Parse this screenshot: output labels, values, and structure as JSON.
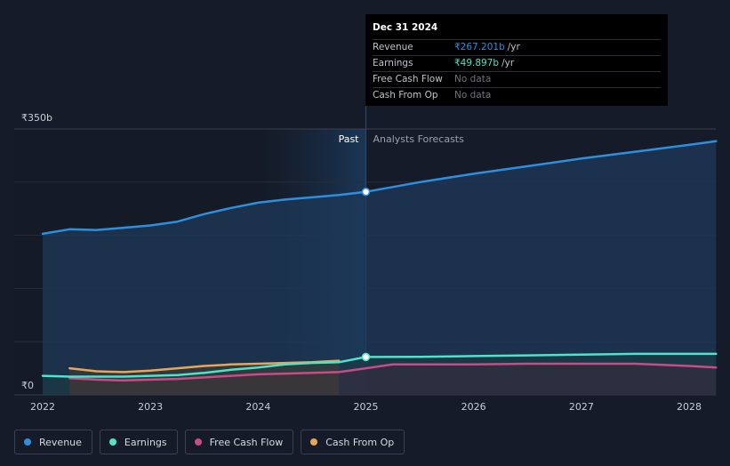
{
  "chart_data": {
    "type": "line",
    "y_axis": {
      "min_label": "₹0",
      "max_label": "₹350b",
      "ylim": [
        0,
        350
      ]
    },
    "x_ticks": [
      "2022",
      "2023",
      "2024",
      "2025",
      "2026",
      "2027",
      "2028"
    ],
    "xlim": [
      2022,
      2028.3
    ],
    "past_label": "Past",
    "forecast_label": "Analysts Forecasts",
    "divider_x": 2025.0,
    "series": [
      {
        "name": "Revenue",
        "color": "#2e8fde",
        "x": [
          2022.0,
          2022.25,
          2022.5,
          2022.75,
          2023.0,
          2023.25,
          2023.5,
          2023.75,
          2024.0,
          2024.25,
          2024.5,
          2024.75,
          2025.0,
          2025.5,
          2026.0,
          2026.5,
          2027.0,
          2027.5,
          2028.0,
          2028.25
        ],
        "values": [
          212,
          218,
          217,
          220,
          223,
          228,
          238,
          246,
          253,
          257,
          260,
          263,
          267.2,
          280,
          291,
          301,
          311,
          320,
          329,
          334
        ]
      },
      {
        "name": "Earnings",
        "color": "#4fe3c9",
        "x": [
          2022.0,
          2022.25,
          2022.5,
          2022.75,
          2023.0,
          2023.25,
          2023.5,
          2023.75,
          2024.0,
          2024.25,
          2024.5,
          2024.75,
          2025.0,
          2025.5,
          2026.0,
          2026.5,
          2027.0,
          2027.5,
          2028.0,
          2028.25
        ],
        "values": [
          25,
          24,
          24,
          24,
          25,
          26,
          29,
          33,
          36,
          40,
          42,
          43,
          49.9,
          50,
          51,
          52,
          53,
          54,
          54,
          54
        ]
      },
      {
        "name": "Free Cash Flow",
        "color": "#c94b89",
        "x": [
          2022.25,
          2022.5,
          2022.75,
          2023.0,
          2023.25,
          2023.5,
          2023.75,
          2024.0,
          2024.25,
          2024.5,
          2024.75,
          2025.0,
          2025.25,
          2025.5,
          2026.0,
          2026.5,
          2027.0,
          2027.5,
          2028.0,
          2028.25
        ],
        "values": [
          22,
          20,
          19,
          20,
          21,
          23,
          25,
          27,
          28,
          29,
          30,
          35,
          40,
          40,
          40,
          41,
          41,
          41,
          38,
          36
        ]
      },
      {
        "name": "Cash From Op",
        "color": "#e9a657",
        "x": [
          2022.25,
          2022.5,
          2022.75,
          2023.0,
          2023.25,
          2023.5,
          2023.75,
          2024.0,
          2024.25,
          2024.5,
          2024.75
        ],
        "values": [
          35,
          31,
          30,
          32,
          35,
          38,
          40,
          41,
          42,
          43,
          45
        ]
      }
    ]
  },
  "tooltip": {
    "date": "Dec 31 2024",
    "rows": [
      {
        "label": "Revenue",
        "value": "₹267.201b",
        "unit": "/yr",
        "color": "#2e8fde"
      },
      {
        "label": "Earnings",
        "value": "₹49.897b",
        "unit": "/yr",
        "color": "#4fe3c9"
      },
      {
        "label": "Free Cash Flow",
        "value": "No data",
        "unit": "",
        "color": ""
      },
      {
        "label": "Cash From Op",
        "value": "No data",
        "unit": "",
        "color": ""
      }
    ]
  },
  "legend": [
    {
      "label": "Revenue",
      "color": "#2e8fde"
    },
    {
      "label": "Earnings",
      "color": "#4fe3c9"
    },
    {
      "label": "Free Cash Flow",
      "color": "#c94b89"
    },
    {
      "label": "Cash From Op",
      "color": "#e9a657"
    }
  ]
}
